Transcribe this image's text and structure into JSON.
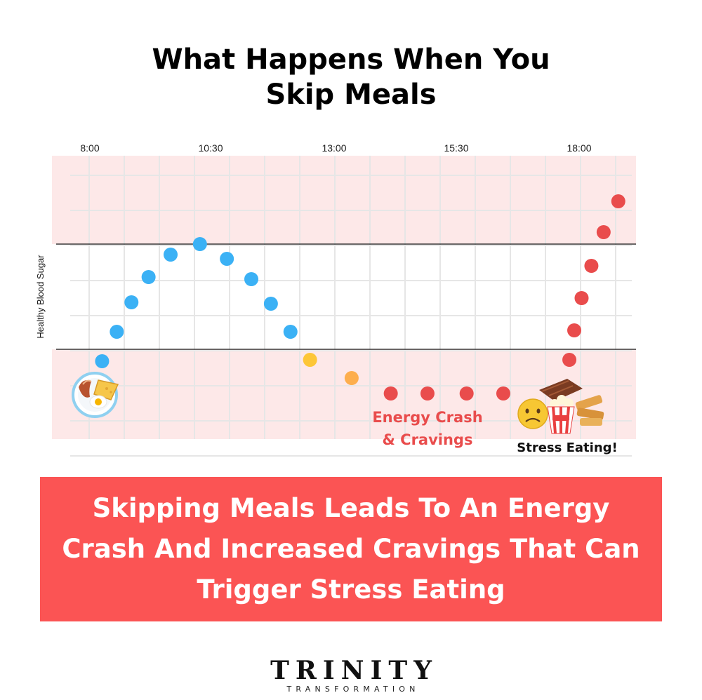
{
  "title_lines": [
    "What Happens When You",
    "Skip Meals"
  ],
  "banner_lines": [
    "Skipping Meals Leads To An Energy",
    "Crash And Increased Cravings That Can",
    "Trigger Stress Eating"
  ],
  "logo": {
    "main": "TRINITY",
    "sub": "TRANSFORMATION"
  },
  "colors": {
    "blue": "#3bb1f5",
    "yellow": "#fdc637",
    "orange": "#fdae4d",
    "red": "#e94c4c",
    "band": "#fde8e8",
    "banner": "#fb5454",
    "grid": "#e6e6e6"
  },
  "chart_data": {
    "type": "scatter",
    "title": "What Happens When You Skip Meals",
    "xlabel": "",
    "ylabel": "Healthy Blood Sugar",
    "x_ticks": [
      "8:00",
      "10:30",
      "13:00",
      "15:30",
      "18:00"
    ],
    "x_tick_hours": [
      8,
      10.5,
      13,
      15.5,
      18
    ],
    "xlim": [
      7.3,
      18.8
    ],
    "ylim": [
      0,
      8
    ],
    "healthy_range": [
      2.5,
      5.5
    ],
    "grid": true,
    "points": [
      {
        "x": 8.25,
        "y": 2.16,
        "color": "blue"
      },
      {
        "x": 8.55,
        "y": 3.0,
        "color": "blue"
      },
      {
        "x": 8.85,
        "y": 3.84,
        "color": "blue"
      },
      {
        "x": 9.2,
        "y": 4.56,
        "color": "blue"
      },
      {
        "x": 9.65,
        "y": 5.2,
        "color": "blue"
      },
      {
        "x": 10.25,
        "y": 5.5,
        "color": "blue"
      },
      {
        "x": 10.8,
        "y": 5.08,
        "color": "blue"
      },
      {
        "x": 11.3,
        "y": 4.5,
        "color": "blue"
      },
      {
        "x": 11.7,
        "y": 3.8,
        "color": "blue"
      },
      {
        "x": 12.1,
        "y": 3.0,
        "color": "blue"
      },
      {
        "x": 12.5,
        "y": 2.2,
        "color": "yellow"
      },
      {
        "x": 13.35,
        "y": 1.68,
        "color": "orange"
      },
      {
        "x": 14.15,
        "y": 1.24,
        "color": "red"
      },
      {
        "x": 14.9,
        "y": 1.24,
        "color": "red"
      },
      {
        "x": 15.7,
        "y": 1.24,
        "color": "red"
      },
      {
        "x": 16.45,
        "y": 1.24,
        "color": "red"
      },
      {
        "x": 17.8,
        "y": 2.2,
        "color": "red"
      },
      {
        "x": 17.9,
        "y": 3.04,
        "color": "red"
      },
      {
        "x": 18.05,
        "y": 3.96,
        "color": "red"
      },
      {
        "x": 18.25,
        "y": 4.88,
        "color": "red"
      },
      {
        "x": 18.5,
        "y": 5.84,
        "color": "red"
      },
      {
        "x": 18.8,
        "y": 6.72,
        "color": "red"
      }
    ],
    "annotations": [
      {
        "text_lines": [
          "Energy Crash",
          "& Cravings"
        ],
        "color": "red"
      },
      {
        "text_lines": [
          "Stress Eating!"
        ],
        "color": "black"
      }
    ],
    "icons": [
      "breakfast-plate-icon",
      "sad-face-icon",
      "popcorn-icon",
      "chocolate-bar-icon",
      "snack-bars-icon",
      "pretzel-icon"
    ]
  }
}
